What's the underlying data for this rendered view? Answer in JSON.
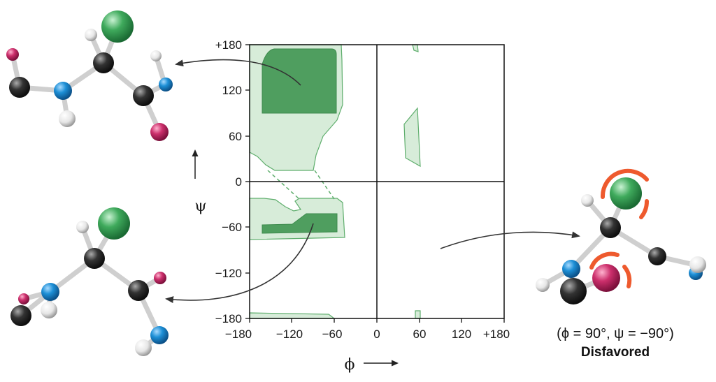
{
  "plot": {
    "x_symbol": "ϕ",
    "y_symbol": "ψ",
    "x_ticks": [
      "−180",
      "−120",
      "−60",
      "0",
      "60",
      "120",
      "+180"
    ],
    "y_ticks": [
      "+180",
      "120",
      "60",
      "0",
      "−60",
      "−120",
      "−180"
    ]
  },
  "caption": {
    "angles": "(ϕ = 90°, ψ = −90°)",
    "verdict": "Disfavored"
  },
  "colors": {
    "allowed_region": "#d7ecd9",
    "favored_region": "#4f9e5f",
    "region_outline": "#5fae6d",
    "carbon": "#333333",
    "nitrogen": "#1d8fd6",
    "oxygen": "#cc2f6c",
    "hydrogen": "#eeeeee",
    "side_chain": "#3faa5c",
    "clash_arc": "#ee5a2e"
  }
}
